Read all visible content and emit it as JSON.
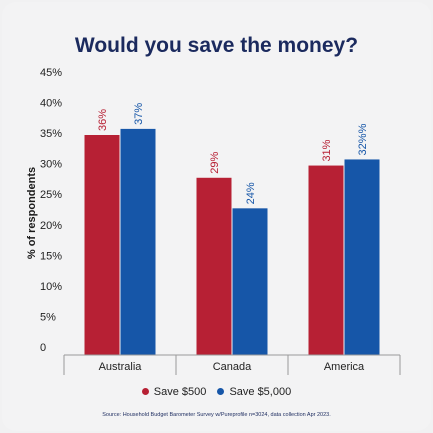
{
  "colors": {
    "title": "#1b2a5e",
    "series1": "#b72034",
    "series2": "#1656a8",
    "grid_axis": "#9a9a9a",
    "background": "#f3f3f4"
  },
  "chart_data": {
    "type": "bar",
    "title": "Would you save the money?",
    "ylabel": "% of respondents",
    "xlabel": "",
    "categories": [
      "Australia",
      "Canada",
      "America"
    ],
    "series": [
      {
        "name": "Save $500",
        "values": [
          36,
          29,
          31
        ],
        "labels": [
          "36%",
          "29%",
          "31%"
        ]
      },
      {
        "name": "Save $5,000",
        "values": [
          37,
          24,
          32
        ],
        "labels": [
          "37%",
          "24%",
          "32%%"
        ]
      }
    ],
    "ylim": [
      0,
      45
    ],
    "yticks": [
      "0",
      "5%",
      "10%",
      "15%",
      "20%",
      "25%",
      "30%",
      "35%",
      "40%",
      "45%"
    ],
    "grid": false,
    "legend_position": "bottom",
    "source": "Source: Household Budget Barometer Survey w/Pureprofile n=3024, data collection Apr 2023."
  }
}
